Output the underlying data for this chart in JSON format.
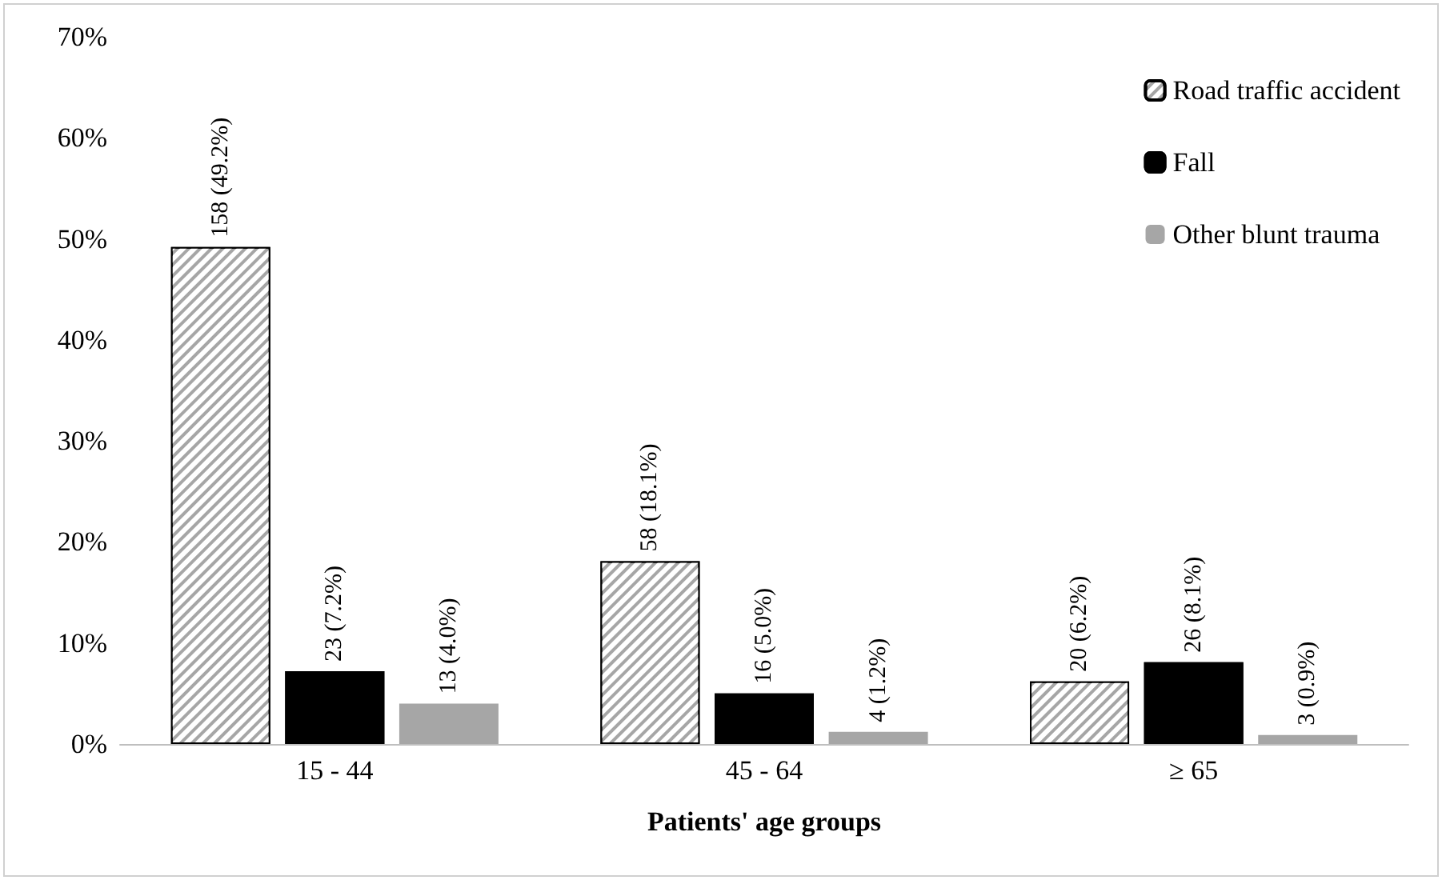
{
  "chart_data": {
    "type": "bar",
    "xlabel": "Patients' age groups",
    "categories": [
      "15 - 44",
      "45 - 64",
      "≥ 65"
    ],
    "series": [
      {
        "name": "Road traffic accident",
        "color": "#a6a6a6",
        "values": [
          49.2,
          18.1,
          6.2
        ],
        "value_labels": [
          "158 (49.2%)",
          "58 (18.1%)",
          "20 (6.2%)"
        ]
      },
      {
        "name": "Fall",
        "color": "#000000",
        "values": [
          7.2,
          5.0,
          8.1
        ],
        "value_labels": [
          "23 (7.2%)",
          "16 (5.0%)",
          "26 (8.1%)"
        ]
      },
      {
        "name": "Other blunt trauma",
        "color": "#a6a6a6",
        "values": [
          4.0,
          1.2,
          0.9
        ],
        "value_labels": [
          "13 (4.0%)",
          "4 (1.2%)",
          "3 (0.9%)"
        ]
      }
    ],
    "ylim": [
      0,
      70
    ],
    "yticks": [
      {
        "value": 0,
        "label": "0%"
      },
      {
        "value": 10,
        "label": "10%"
      },
      {
        "value": 20,
        "label": "20%"
      },
      {
        "value": 30,
        "label": "30%"
      },
      {
        "value": 40,
        "label": "40%"
      },
      {
        "value": 50,
        "label": "50%"
      },
      {
        "value": 60,
        "label": "60%"
      },
      {
        "value": 70,
        "label": "70%"
      }
    ],
    "grid": false,
    "legend": "top right"
  }
}
